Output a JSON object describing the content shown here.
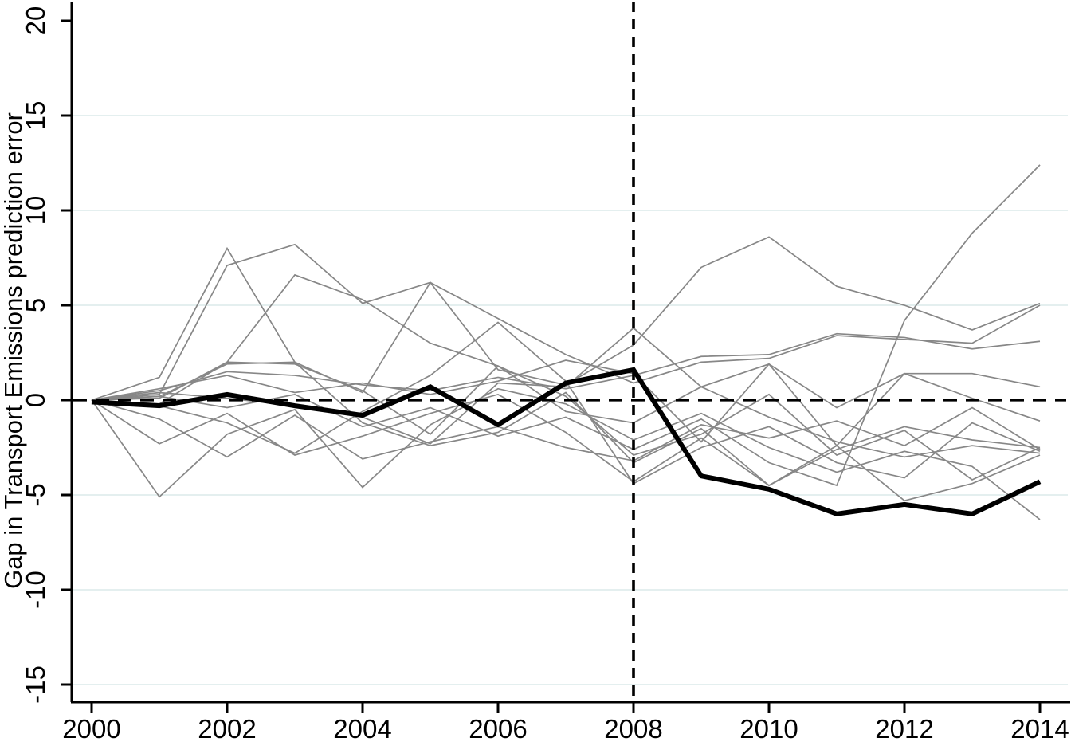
{
  "figure": {
    "title": "",
    "ylabel": "Gap in Transport Emissions prediction error",
    "xlabel": ""
  },
  "chart_data": {
    "type": "line",
    "x": [
      2000,
      2001,
      2002,
      2003,
      2004,
      2005,
      2006,
      2007,
      2008,
      2009,
      2010,
      2011,
      2012,
      2013,
      2014
    ],
    "xticks": [
      2000,
      2002,
      2004,
      2006,
      2008,
      2010,
      2012,
      2014
    ],
    "yticks": [
      -15,
      -10,
      -5,
      0,
      5,
      10,
      15,
      20
    ],
    "grid_y_values": [
      15,
      10,
      5,
      -5,
      -10,
      -15
    ],
    "xlim": [
      1999.7,
      2014.4
    ],
    "ylim": [
      -15.9,
      21.1
    ],
    "ylabel": "Gap in Transport Emissions prediction error",
    "xlabel": "",
    "legend": "none",
    "grid": "horizontal-light",
    "reference_lines": {
      "horizontal_dashed_y": 0,
      "vertical_dashed_x": 2008
    },
    "style": {
      "treated_color": "#000000",
      "treated_width": 6,
      "placebo_color": "#878787",
      "placebo_width": 1.7,
      "grid_color": "#e4efef",
      "axis_color": "#000000",
      "reference_color": "#000000",
      "background": "#ffffff"
    },
    "series": [
      {
        "name": "treated-unit-gap",
        "role": "treated",
        "values": [
          -0.1,
          -0.3,
          0.3,
          -0.3,
          -0.8,
          0.7,
          -1.3,
          0.9,
          1.6,
          -4.0,
          -4.7,
          -6.0,
          -5.5,
          -6.0,
          -4.3
        ]
      },
      {
        "name": "placebo-1",
        "role": "placebo",
        "values": [
          0,
          0.3,
          7.1,
          8.2,
          5.1,
          6.2,
          4.3,
          2.4,
          0.9,
          2.0,
          2.2,
          3.4,
          3.2,
          3.0,
          5.0
        ]
      },
      {
        "name": "placebo-2",
        "role": "placebo",
        "values": [
          0,
          1.2,
          8.0,
          2.0,
          -1.2,
          -2.4,
          -1.7,
          0.4,
          -3.3,
          -1.5,
          -4.5,
          -2.6,
          -1.4,
          -2.1,
          -2.5
        ]
      },
      {
        "name": "placebo-3",
        "role": "placebo",
        "values": [
          0,
          -0.2,
          2.0,
          6.6,
          5.3,
          3.0,
          1.8,
          -0.6,
          -1.2,
          0.7,
          1.9,
          -0.4,
          1.4,
          0.1,
          -1.1
        ]
      },
      {
        "name": "placebo-4",
        "role": "placebo",
        "values": [
          0,
          -5.1,
          -1.8,
          -0.5,
          -4.6,
          -1.3,
          0.6,
          -0.2,
          -2.1,
          -0.7,
          -2.5,
          -3.8,
          -2.7,
          -3.5,
          -6.3
        ]
      },
      {
        "name": "placebo-5",
        "role": "placebo",
        "values": [
          0,
          0.2,
          1.9,
          2.0,
          0.4,
          6.2,
          1.6,
          0.8,
          2.9,
          7.0,
          8.6,
          6.0,
          5.0,
          3.7,
          5.1
        ]
      },
      {
        "name": "placebo-6",
        "role": "placebo",
        "values": [
          0,
          0.4,
          0.1,
          -0.3,
          -0.9,
          -2.3,
          0.9,
          0.7,
          3.8,
          0.7,
          -0.9,
          -2.2,
          -3.0,
          -2.4,
          -2.8
        ]
      },
      {
        "name": "placebo-7",
        "role": "placebo",
        "values": [
          0,
          -0.3,
          -1.2,
          -2.8,
          -0.6,
          1.3,
          4.1,
          1.0,
          -4.4,
          -2.5,
          -1.4,
          -3.3,
          -4.1,
          -1.2,
          -2.7
        ]
      },
      {
        "name": "placebo-8",
        "role": "placebo",
        "values": [
          0,
          0.2,
          -0.4,
          0.3,
          -1.4,
          -0.4,
          -1.9,
          -0.9,
          -2.6,
          -1.0,
          -3.3,
          -4.5,
          4.2,
          8.8,
          12.4
        ]
      },
      {
        "name": "placebo-9",
        "role": "placebo",
        "values": [
          0,
          0.1,
          2.0,
          1.9,
          0.5,
          -1.8,
          1.8,
          0.2,
          -2.9,
          -1.8,
          0.3,
          -2.9,
          -1.6,
          -4.2,
          -2.5
        ]
      },
      {
        "name": "placebo-10",
        "role": "placebo",
        "values": [
          0,
          -2.3,
          -0.7,
          -2.9,
          -1.9,
          -0.7,
          0.3,
          -1.7,
          -4.3,
          -2.0,
          -4.5,
          -2.4,
          -5.3,
          -4.4,
          -2.9
        ]
      },
      {
        "name": "placebo-11",
        "role": "placebo",
        "values": [
          0,
          0.5,
          1.5,
          1.3,
          0.8,
          0.5,
          1.2,
          0.6,
          1.3,
          2.3,
          2.4,
          3.5,
          3.3,
          2.7,
          3.1
        ]
      },
      {
        "name": "placebo-12",
        "role": "placebo",
        "values": [
          0,
          0.6,
          1.3,
          0.4,
          0.9,
          0.3,
          1.0,
          2.1,
          1.4,
          -2.2,
          1.9,
          -2.4,
          1.4,
          1.4,
          0.7
        ]
      },
      {
        "name": "placebo-13",
        "role": "placebo",
        "values": [
          0,
          -1.0,
          -3.0,
          -0.8,
          -3.1,
          -2.2,
          -1.4,
          -2.5,
          -3.2,
          -1.3,
          -2.0,
          -1.1,
          -2.4,
          -0.4,
          -2.6
        ]
      }
    ]
  }
}
